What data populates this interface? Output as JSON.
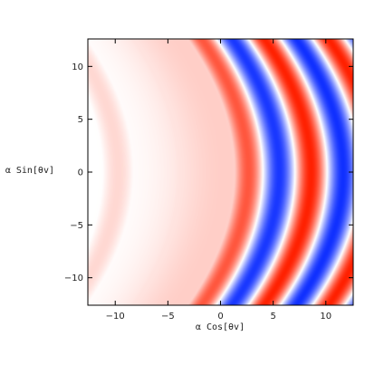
{
  "chart_data": {
    "type": "heatmap",
    "title": "",
    "xlabel": "α Cos[θv]",
    "ylabel": "α Sin[θv]",
    "xlim": [
      -12.6,
      12.6
    ],
    "ylim": [
      -12.6,
      12.6
    ],
    "xticks": [
      -10,
      -5,
      0,
      5,
      10
    ],
    "yticks": [
      -10,
      -5,
      0,
      5,
      10
    ],
    "xtick_labels": [
      "−10",
      "−5",
      "0",
      "5",
      "10"
    ],
    "ytick_labels": [
      "−10",
      "−5",
      "0",
      "5",
      "10"
    ],
    "grid": false,
    "legend": "none",
    "colormap": {
      "low": "#1030ff",
      "mid": "#ffffff",
      "high": "#ff2000"
    },
    "field": {
      "description_of_pattern": "field = z(x,y) rendered with diverging blue-white-red colormap",
      "red_band_peaks_at_y0": [
        2.5,
        8.6
      ],
      "blue_band_peaks_at_y0": [
        5.7,
        11.5
      ],
      "sample_grid": {
        "x": [
          -12.6,
          -10,
          -5,
          0,
          2.5,
          4,
          5.7,
          7,
          8.6,
          10,
          11.5,
          12.6
        ],
        "y0_values": [
          0.02,
          0.05,
          0.12,
          0.35,
          0.95,
          0.0,
          -0.95,
          0.0,
          0.95,
          0.0,
          -0.9,
          0.8
        ]
      }
    }
  }
}
